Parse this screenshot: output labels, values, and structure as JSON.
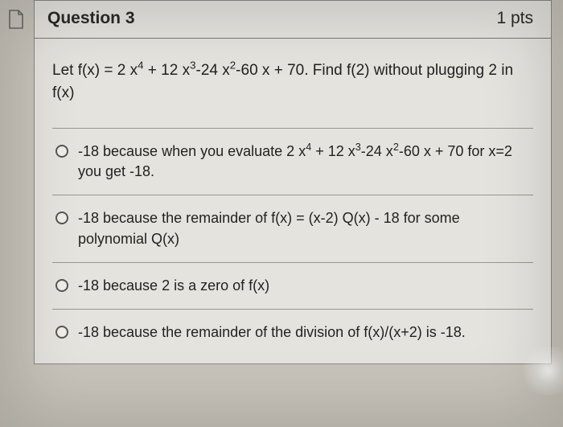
{
  "header": {
    "title": "Question 3",
    "points": "1 pts"
  },
  "stem_html": "Let f(x) = 2 x<sup>4</sup> + 12 x<sup>3</sup>-24 x<sup>2</sup>-60 x + 70. Find f(2) without plugging 2 in f(x)",
  "options": [
    "-18 because when you evaluate 2 x<sup>4</sup> + 12 x<sup>3</sup>-24 x<sup>2</sup>-60 x + 70 for x=2 you get -18.",
    "-18 because the remainder of f(x) = (x-2) Q(x) - 18 for some polynomial Q(x)",
    "-18 because 2 is a zero of f(x)",
    "-18 because the remainder of the division of f(x)/(x+2) is -18."
  ],
  "colors": {
    "page_bg": "#c8c4bb",
    "card_bg": "#e5e3de",
    "border": "#888",
    "divider": "#9a968e",
    "text": "#222"
  }
}
